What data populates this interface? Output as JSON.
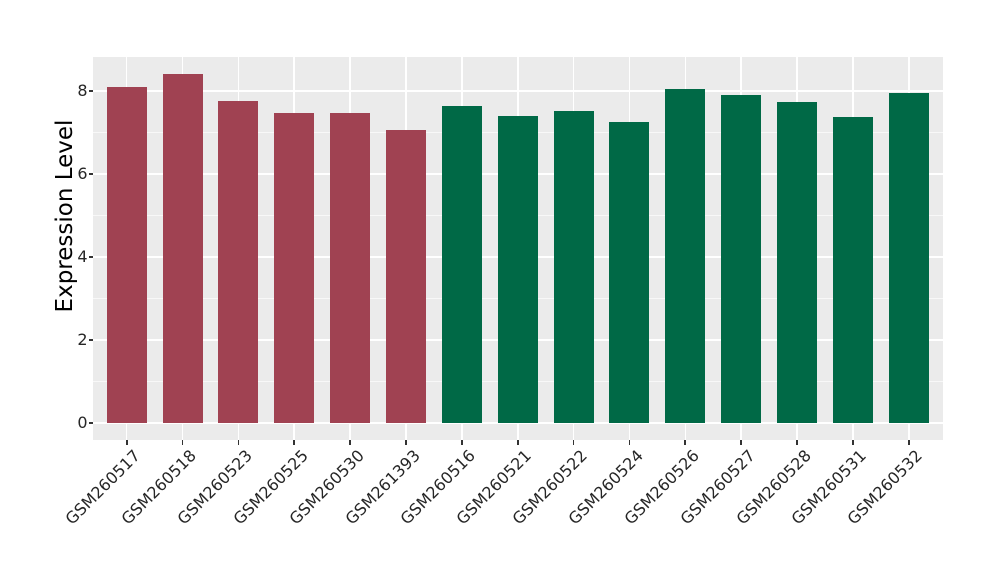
{
  "chart_data": {
    "type": "bar",
    "title": "",
    "xlabel": "",
    "ylabel": "Expression Level",
    "categories": [
      "GSM260517",
      "GSM260518",
      "GSM260523",
      "GSM260525",
      "GSM260530",
      "GSM261393",
      "GSM260516",
      "GSM260521",
      "GSM260522",
      "GSM260524",
      "GSM260526",
      "GSM260527",
      "GSM260528",
      "GSM260531",
      "GSM260532"
    ],
    "values": [
      8.09,
      8.41,
      7.77,
      7.48,
      7.48,
      7.06,
      7.64,
      7.4,
      7.52,
      7.26,
      8.05,
      7.9,
      7.74,
      7.38,
      7.96
    ],
    "bar_colors": [
      "#A04252",
      "#A04252",
      "#A04252",
      "#A04252",
      "#A04252",
      "#A04252",
      "#006946",
      "#006946",
      "#006946",
      "#006946",
      "#006946",
      "#006946",
      "#006946",
      "#006946",
      "#006946"
    ],
    "color_groups": [
      {
        "color": "#A04252",
        "count": 6
      },
      {
        "color": "#006946",
        "count": 9
      }
    ],
    "y_ticks": [
      0,
      2,
      4,
      6,
      8
    ],
    "y_minor_ticks": [
      1,
      3,
      5,
      7
    ],
    "ylim": [
      -0.41,
      9.22
    ],
    "grid": "on",
    "legend": "none",
    "style": {
      "panel_background": "#EBEBEB",
      "grid_major_color": "#FFFFFF",
      "grid_minor_color": "#FFFFFF",
      "axis_text_color": "#262626",
      "axis_title_color": "#000000",
      "tick_mark_color": "#333333",
      "figure_background": "#FFFFFF"
    }
  }
}
